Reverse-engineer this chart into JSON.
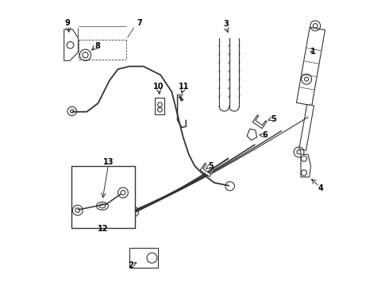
{
  "background_color": "#ffffff",
  "line_color": "#333333",
  "label_fontsize": 7,
  "fig_width": 4.9,
  "fig_height": 3.6,
  "dpi": 100
}
